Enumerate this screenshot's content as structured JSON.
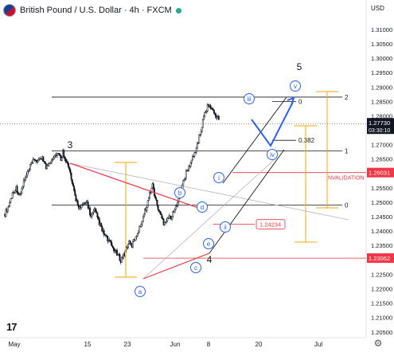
{
  "symbol": {
    "title": "British Pound / U.S. Dollar · 4h · FXCM",
    "currency": "USD"
  },
  "chart_data": {
    "type": "candlestick",
    "ylim": [
      1.203,
      1.318
    ],
    "y_ticks": [
      "1.31000",
      "1.30500",
      "1.30000",
      "1.29500",
      "1.29000",
      "1.28500",
      "1.28000",
      "1.27500",
      "1.27000",
      "1.26500",
      "1.26000",
      "1.25500",
      "1.25000",
      "1.24500",
      "1.24000",
      "1.23500",
      "1.23000",
      "1.22500",
      "1.22000",
      "1.21500",
      "1.21000",
      "1.20500"
    ],
    "x_ticks": [
      "May",
      "15",
      "23",
      "Jun",
      "8",
      "20",
      "Jul"
    ],
    "price_path": [
      [
        0,
        1.246
      ],
      [
        2,
        1.249
      ],
      [
        4,
        1.253
      ],
      [
        6,
        1.255
      ],
      [
        8,
        1.252
      ],
      [
        10,
        1.257
      ],
      [
        12,
        1.26
      ],
      [
        14,
        1.263
      ],
      [
        16,
        1.265
      ],
      [
        18,
        1.264
      ],
      [
        20,
        1.266
      ],
      [
        22,
        1.262
      ],
      [
        24,
        1.264
      ],
      [
        26,
        1.266
      ],
      [
        28,
        1.267
      ],
      [
        30,
        1.265
      ],
      [
        31,
        1.2675
      ],
      [
        33,
        1.264
      ],
      [
        35,
        1.26
      ],
      [
        36,
        1.256
      ],
      [
        38,
        1.251
      ],
      [
        40,
        1.248
      ],
      [
        42,
        1.249
      ],
      [
        44,
        1.25
      ],
      [
        46,
        1.245
      ],
      [
        48,
        1.247
      ],
      [
        50,
        1.244
      ],
      [
        52,
        1.24
      ],
      [
        54,
        1.238
      ],
      [
        56,
        1.236
      ],
      [
        58,
        1.234
      ],
      [
        60,
        1.232
      ],
      [
        62,
        1.23
      ],
      [
        64,
        1.232
      ],
      [
        66,
        1.236
      ],
      [
        68,
        1.235
      ],
      [
        70,
        1.238
      ],
      [
        72,
        1.241
      ],
      [
        74,
        1.245
      ],
      [
        76,
        1.249
      ],
      [
        78,
        1.254
      ],
      [
        79,
        1.256
      ],
      [
        81,
        1.25
      ],
      [
        83,
        1.246
      ],
      [
        85,
        1.243
      ],
      [
        87,
        1.2445
      ],
      [
        89,
        1.245
      ],
      [
        91,
        1.247
      ],
      [
        93,
        1.252
      ],
      [
        95,
        1.256
      ],
      [
        97,
        1.26
      ],
      [
        99,
        1.263
      ],
      [
        101,
        1.266
      ],
      [
        103,
        1.27
      ],
      [
        105,
        1.275
      ],
      [
        107,
        1.281
      ],
      [
        109,
        1.284
      ],
      [
        111,
        1.282
      ],
      [
        113,
        1.28
      ],
      [
        115,
        1.2785
      ]
    ],
    "current_price": "1.27730",
    "countdown": "03:30:10",
    "horizontal_levels": [
      {
        "price": 1.2865,
        "label": "2"
      },
      {
        "price": 1.2678,
        "label": "1"
      },
      {
        "price": 1.249,
        "label": "0"
      },
      {
        "price": 1.26031,
        "label": "1.26031",
        "note": "INVALIDATION"
      },
      {
        "price": 1.24234,
        "label": "1.24234"
      },
      {
        "price": 1.23062,
        "label": "1.23062"
      }
    ],
    "fib_small": [
      {
        "price": 1.285,
        "label": "0"
      },
      {
        "price": 1.2715,
        "label": "0.382"
      }
    ],
    "wave_labels": [
      {
        "text": "3",
        "style": "plain"
      },
      {
        "text": "4",
        "style": "plain"
      },
      {
        "text": "5",
        "style": "plain"
      },
      {
        "text": "a",
        "style": "circle"
      },
      {
        "text": "b",
        "style": "circle"
      },
      {
        "text": "c",
        "style": "circle"
      },
      {
        "text": "d",
        "style": "circle"
      },
      {
        "text": "e",
        "style": "circle"
      },
      {
        "text": "i",
        "style": "circle"
      },
      {
        "text": "ii",
        "style": "circle"
      },
      {
        "text": "iii",
        "style": "circle"
      },
      {
        "text": "iv",
        "style": "circle"
      },
      {
        "text": "v",
        "style": "circle"
      }
    ],
    "colors": {
      "up": "#131722",
      "down": "#131722",
      "red": "#f23645",
      "blue": "#2962ff",
      "orange": "#f7a600",
      "grey": "#b2b5be"
    }
  },
  "logo": "17"
}
